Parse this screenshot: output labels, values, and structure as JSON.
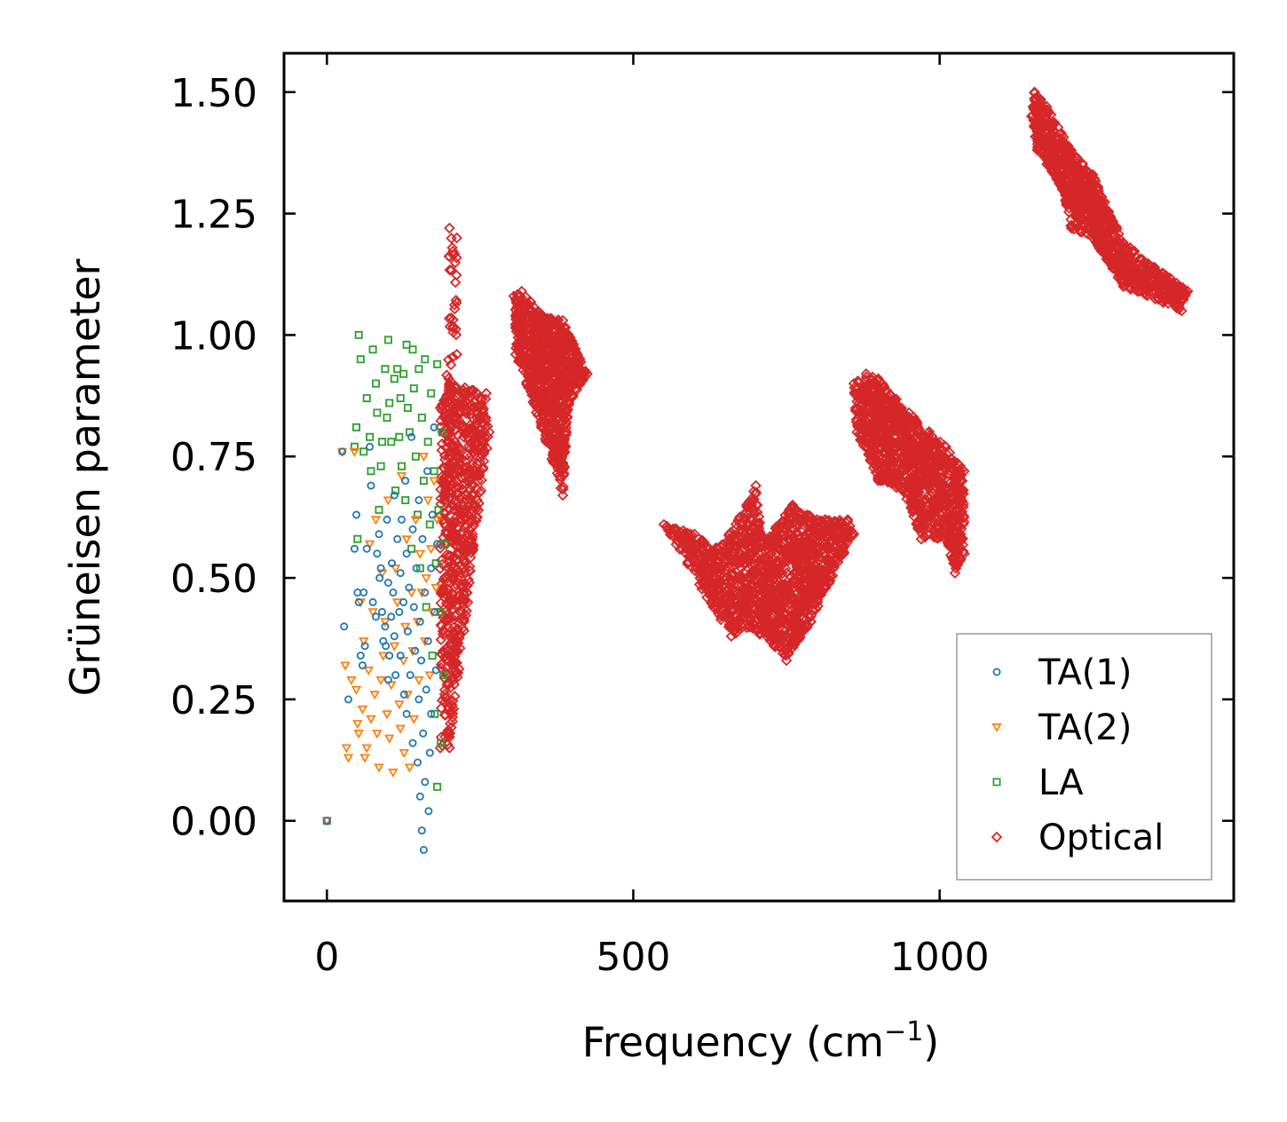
{
  "chart_data": {
    "type": "scatter",
    "title": "",
    "xlabel_base": "Frequency (cm",
    "xlabel_sup": "−1",
    "xlabel_close": ")",
    "ylabel": "Grüneisen parameter",
    "xlim": [
      -70,
      1480
    ],
    "ylim": [
      -0.165,
      1.58
    ],
    "xticks": [
      0,
      500,
      1000
    ],
    "xtick_labels": [
      "0",
      "500",
      "1000"
    ],
    "yticks": [
      0.0,
      0.25,
      0.5,
      0.75,
      1.0,
      1.25,
      1.5
    ],
    "ytick_labels": [
      "0.00",
      "0.25",
      "0.50",
      "0.75",
      "1.00",
      "1.25",
      "1.50"
    ],
    "legend_position": "lower-right",
    "series": [
      {
        "name": "TA(1)",
        "marker": "circle",
        "color": "#1f77b4",
        "points": [
          [
            0,
            0
          ],
          [
            25,
            0.76
          ],
          [
            28,
            0.4
          ],
          [
            35,
            0.25
          ],
          [
            45,
            0.56
          ],
          [
            48,
            0.63
          ],
          [
            50,
            0.47
          ],
          [
            52,
            0.45
          ],
          [
            55,
            0.34
          ],
          [
            58,
            0.32
          ],
          [
            60,
            0.47
          ],
          [
            62,
            0.36
          ],
          [
            65,
            0.56
          ],
          [
            70,
            0.77
          ],
          [
            72,
            0.69
          ],
          [
            75,
            0.45
          ],
          [
            80,
            0.42
          ],
          [
            82,
            0.55
          ],
          [
            85,
            0.59
          ],
          [
            86,
            0.5
          ],
          [
            88,
            0.52
          ],
          [
            90,
            0.43
          ],
          [
            92,
            0.37
          ],
          [
            95,
            0.4
          ],
          [
            96,
            0.36
          ],
          [
            98,
            0.62
          ],
          [
            100,
            0.49
          ],
          [
            100,
            0.29
          ],
          [
            102,
            0.34
          ],
          [
            105,
            0.42
          ],
          [
            106,
            0.53
          ],
          [
            108,
            0.47
          ],
          [
            110,
            0.67
          ],
          [
            110,
            0.38
          ],
          [
            112,
            0.3
          ],
          [
            115,
            0.58
          ],
          [
            118,
            0.43
          ],
          [
            120,
            0.51
          ],
          [
            120,
            0.34
          ],
          [
            122,
            0.62
          ],
          [
            125,
            0.45
          ],
          [
            126,
            0.26
          ],
          [
            128,
            0.7
          ],
          [
            130,
            0.55
          ],
          [
            130,
            0.22
          ],
          [
            132,
            0.39
          ],
          [
            134,
            0.48
          ],
          [
            136,
            0.3
          ],
          [
            138,
            0.79
          ],
          [
            140,
            0.6
          ],
          [
            140,
            0.16
          ],
          [
            142,
            0.44
          ],
          [
            144,
            0.35
          ],
          [
            146,
            0.52
          ],
          [
            148,
            0.12
          ],
          [
            150,
            0.66
          ],
          [
            150,
            0.25
          ],
          [
            152,
            0.41
          ],
          [
            152,
            0.05
          ],
          [
            154,
            0.33
          ],
          [
            155,
            -0.02
          ],
          [
            156,
            0.58
          ],
          [
            157,
            0.18
          ],
          [
            158,
            -0.06
          ],
          [
            160,
            0.47
          ],
          [
            160,
            0.08
          ],
          [
            162,
            0.27
          ],
          [
            164,
            0.72
          ],
          [
            165,
            0.37
          ],
          [
            166,
            0.02
          ],
          [
            168,
            0.14
          ],
          [
            170,
            0.52
          ],
          [
            170,
            0.22
          ],
          [
            172,
            0.63
          ],
          [
            175,
            0.81
          ],
          [
            176,
            0.43
          ],
          [
            178,
            0.31
          ],
          [
            180,
            0.57
          ]
        ]
      },
      {
        "name": "TA(2)",
        "marker": "triangle-down",
        "color": "#ff7f0e",
        "points": [
          [
            0,
            0
          ],
          [
            25,
            0.76
          ],
          [
            30,
            0.32
          ],
          [
            32,
            0.15
          ],
          [
            35,
            0.13
          ],
          [
            40,
            0.29
          ],
          [
            45,
            0.76
          ],
          [
            48,
            0.27
          ],
          [
            50,
            0.2
          ],
          [
            52,
            0.18
          ],
          [
            55,
            0.45
          ],
          [
            58,
            0.23
          ],
          [
            60,
            0.37
          ],
          [
            62,
            0.13
          ],
          [
            65,
            0.15
          ],
          [
            68,
            0.31
          ],
          [
            70,
            0.57
          ],
          [
            72,
            0.21
          ],
          [
            75,
            0.43
          ],
          [
            78,
            0.26
          ],
          [
            80,
            0.62
          ],
          [
            82,
            0.18
          ],
          [
            85,
            0.11
          ],
          [
            88,
            0.29
          ],
          [
            90,
            0.51
          ],
          [
            92,
            0.34
          ],
          [
            95,
            0.41
          ],
          [
            98,
            0.22
          ],
          [
            100,
            0.66
          ],
          [
            102,
            0.17
          ],
          [
            105,
            0.28
          ],
          [
            108,
            0.1
          ],
          [
            110,
            0.36
          ],
          [
            112,
            0.52
          ],
          [
            115,
            0.45
          ],
          [
            118,
            0.24
          ],
          [
            120,
            0.19
          ],
          [
            122,
            0.71
          ],
          [
            125,
            0.33
          ],
          [
            126,
            0.14
          ],
          [
            128,
            0.4
          ],
          [
            130,
            0.58
          ],
          [
            132,
            0.26
          ],
          [
            135,
            0.11
          ],
          [
            138,
            0.47
          ],
          [
            140,
            0.35
          ],
          [
            142,
            0.21
          ],
          [
            145,
            0.62
          ],
          [
            148,
            0.41
          ],
          [
            150,
            0.29
          ],
          [
            152,
            0.55
          ],
          [
            155,
            0.47
          ],
          [
            158,
            0.75
          ],
          [
            160,
            0.37
          ],
          [
            162,
            0.5
          ],
          [
            165,
            0.66
          ],
          [
            168,
            0.3
          ],
          [
            170,
            0.56
          ],
          [
            172,
            0.43
          ],
          [
            175,
            0.7
          ],
          [
            178,
            0.48
          ],
          [
            180,
            0.62
          ]
        ]
      },
      {
        "name": "LA",
        "marker": "square",
        "color": "#2ca02c",
        "points": [
          [
            0,
            0
          ],
          [
            45,
            0.77
          ],
          [
            48,
            0.81
          ],
          [
            50,
            0.58
          ],
          [
            52,
            1.0
          ],
          [
            55,
            0.95
          ],
          [
            60,
            0.76
          ],
          [
            65,
            0.87
          ],
          [
            70,
            0.79
          ],
          [
            72,
            0.72
          ],
          [
            75,
            0.97
          ],
          [
            80,
            0.9
          ],
          [
            82,
            0.84
          ],
          [
            85,
            0.64
          ],
          [
            88,
            0.73
          ],
          [
            90,
            0.78
          ],
          [
            95,
            0.93
          ],
          [
            98,
            0.83
          ],
          [
            100,
            0.99
          ],
          [
            102,
            0.86
          ],
          [
            105,
            0.78
          ],
          [
            110,
            0.91
          ],
          [
            112,
            0.68
          ],
          [
            115,
            0.93
          ],
          [
            118,
            0.79
          ],
          [
            120,
            0.87
          ],
          [
            122,
            0.73
          ],
          [
            125,
            0.92
          ],
          [
            128,
            0.66
          ],
          [
            130,
            0.98
          ],
          [
            132,
            0.85
          ],
          [
            135,
            0.8
          ],
          [
            138,
            0.56
          ],
          [
            140,
            0.97
          ],
          [
            142,
            0.89
          ],
          [
            145,
            0.75
          ],
          [
            148,
            0.63
          ],
          [
            150,
            0.93
          ],
          [
            152,
            0.52
          ],
          [
            155,
            0.83
          ],
          [
            158,
            0.7
          ],
          [
            160,
            0.95
          ],
          [
            162,
            0.44
          ],
          [
            165,
            0.78
          ],
          [
            168,
            0.61
          ],
          [
            170,
            0.88
          ],
          [
            172,
            0.34
          ],
          [
            175,
            0.72
          ],
          [
            176,
            0.22
          ],
          [
            178,
            0.53
          ],
          [
            180,
            0.94
          ],
          [
            180,
            0.07
          ],
          [
            182,
            0.64
          ],
          [
            185,
            0.43
          ],
          [
            186,
            0.16
          ],
          [
            188,
            0.8
          ],
          [
            190,
            0.3
          ],
          [
            192,
            0.57
          ]
        ]
      },
      {
        "name": "Optical",
        "marker": "diamond",
        "color": "#d62728",
        "clusters": [
          {
            "x": [
              [
                185,
                0.15
              ],
              [
                185,
                0.85
              ],
              [
                200,
                0.9
              ],
              [
                260,
                0.88
              ],
              [
                265,
                0.8
              ],
              [
                230,
                0.45
              ],
              [
                200,
                0.15
              ]
            ],
            "n": 650
          },
          {
            "x": [
              [
                190,
                0.62
              ],
              [
                200,
                1.22
              ],
              [
                212,
                1.2
              ],
              [
                212,
                0.96
              ],
              [
                205,
                0.65
              ]
            ],
            "n": 70
          },
          {
            "x": [
              [
                305,
                1.08
              ],
              [
                318,
                1.09
              ],
              [
                352,
                1.04
              ],
              [
                385,
                1.03
              ],
              [
                425,
                0.92
              ],
              [
                395,
                0.86
              ],
              [
                385,
                0.67
              ],
              [
                350,
                0.81
              ],
              [
                308,
                0.96
              ]
            ],
            "n": 850
          },
          {
            "x": [
              [
                550,
                0.61
              ],
              [
                600,
                0.59
              ],
              [
                640,
                0.56
              ],
              [
                685,
                0.65
              ],
              [
                700,
                0.69
              ],
              [
                710,
                0.57
              ],
              [
                760,
                0.65
              ],
              [
                800,
                0.62
              ],
              [
                850,
                0.62
              ],
              [
                860,
                0.59
              ],
              [
                820,
                0.49
              ],
              [
                790,
                0.41
              ],
              [
                750,
                0.33
              ],
              [
                730,
                0.36
              ],
              [
                690,
                0.4
              ],
              [
                660,
                0.38
              ],
              [
                620,
                0.46
              ]
            ],
            "n": 1500
          },
          {
            "x": [
              [
                860,
                0.9
              ],
              [
                880,
                0.92
              ],
              [
                900,
                0.91
              ],
              [
                950,
                0.84
              ],
              [
                1010,
                0.77
              ],
              [
                1040,
                0.72
              ],
              [
                1040,
                0.55
              ],
              [
                1025,
                0.51
              ],
              [
                1010,
                0.58
              ],
              [
                970,
                0.58
              ],
              [
                940,
                0.68
              ],
              [
                900,
                0.7
              ],
              [
                865,
                0.8
              ]
            ],
            "n": 1100
          },
          {
            "x": [
              [
                1155,
                1.5
              ],
              [
                1175,
                1.47
              ],
              [
                1215,
                1.38
              ],
              [
                1250,
                1.33
              ],
              [
                1300,
                1.19
              ],
              [
                1405,
                1.09
              ],
              [
                1395,
                1.05
              ],
              [
                1300,
                1.1
              ],
              [
                1250,
                1.2
              ],
              [
                1215,
                1.22
              ],
              [
                1200,
                1.3
              ],
              [
                1160,
                1.38
              ],
              [
                1150,
                1.45
              ]
            ],
            "n": 1000
          }
        ]
      }
    ]
  }
}
